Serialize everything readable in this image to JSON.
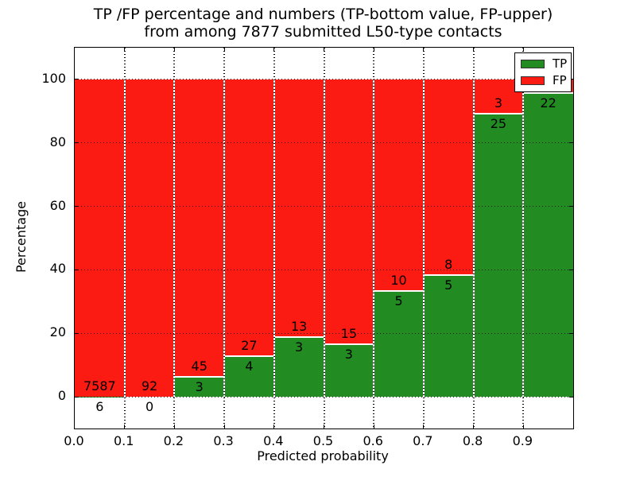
{
  "title": {
    "line1": "TP /FP percentage and numbers (TP-bottom value, FP-upper)",
    "line2": "from among 7877 submitted L50-type contacts"
  },
  "chart_data": {
    "type": "bar",
    "stacked": true,
    "title": "TP /FP percentage and numbers (TP-bottom value, FP-upper)\nfrom among 7877 submitted L50-type contacts",
    "xlabel": "Predicted probability",
    "ylabel": "Percentage",
    "xlim": [
      0.0,
      1.0
    ],
    "ylim": [
      -10,
      110
    ],
    "x_ticks": [
      "0.0",
      "0.1",
      "0.2",
      "0.3",
      "0.4",
      "0.5",
      "0.6",
      "0.7",
      "0.8",
      "0.9"
    ],
    "y_ticks": [
      0,
      20,
      40,
      60,
      80,
      100
    ],
    "grid": "dotted",
    "total_submitted_contacts": 7877,
    "legend_position": "upper right",
    "legend": [
      {
        "label": "TP",
        "color": "#228b22"
      },
      {
        "label": "FP",
        "color": "#fb1b12"
      }
    ],
    "bars": [
      {
        "bin_start": 0.0,
        "bin_end": 0.1,
        "tp": 6,
        "fp": 7587,
        "tp_pct": 0.08,
        "tp_label": "6",
        "fp_label": "7587"
      },
      {
        "bin_start": 0.1,
        "bin_end": 0.2,
        "tp": 0,
        "fp": 92,
        "tp_pct": 0.0,
        "tp_label": "0",
        "fp_label": "92"
      },
      {
        "bin_start": 0.2,
        "bin_end": 0.3,
        "tp": 3,
        "fp": 45,
        "tp_pct": 6.25,
        "tp_label": "3",
        "fp_label": "45"
      },
      {
        "bin_start": 0.3,
        "bin_end": 0.4,
        "tp": 4,
        "fp": 27,
        "tp_pct": 12.9,
        "tp_label": "4",
        "fp_label": "27"
      },
      {
        "bin_start": 0.4,
        "bin_end": 0.5,
        "tp": 3,
        "fp": 13,
        "tp_pct": 18.75,
        "tp_label": "3",
        "fp_label": "13"
      },
      {
        "bin_start": 0.5,
        "bin_end": 0.6,
        "tp": 3,
        "fp": 15,
        "tp_pct": 16.67,
        "tp_label": "3",
        "fp_label": "15"
      },
      {
        "bin_start": 0.6,
        "bin_end": 0.7,
        "tp": 5,
        "fp": 10,
        "tp_pct": 33.33,
        "tp_label": "5",
        "fp_label": "10"
      },
      {
        "bin_start": 0.7,
        "bin_end": 0.8,
        "tp": 5,
        "fp": 8,
        "tp_pct": 38.46,
        "tp_label": "5",
        "fp_label": "8"
      },
      {
        "bin_start": 0.8,
        "bin_end": 0.9,
        "tp": 25,
        "fp": 3,
        "tp_pct": 89.29,
        "tp_label": "25",
        "fp_label": "3"
      },
      {
        "bin_start": 0.9,
        "bin_end": 1.0,
        "tp": 22,
        "fp": null,
        "tp_pct": 95.65,
        "tp_label": "22",
        "fp_label": ""
      }
    ]
  },
  "colors": {
    "tp": "#228b22",
    "fp": "#fb1b12",
    "grid": "#000000",
    "background": "#ffffff",
    "text": "#000000"
  }
}
